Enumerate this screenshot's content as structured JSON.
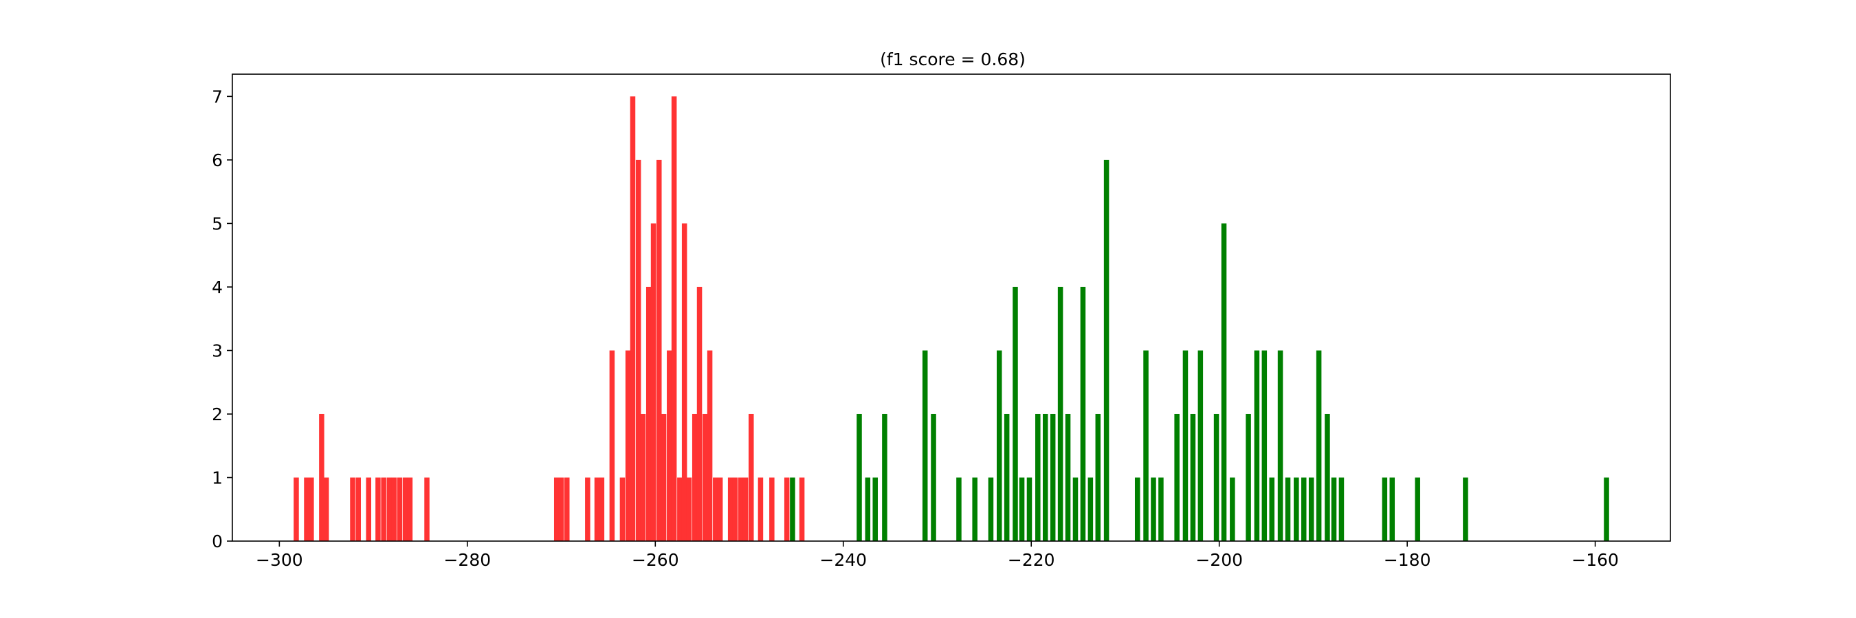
{
  "chart_data": {
    "type": "bar",
    "title": "(f1 score = 0.68)",
    "xlabel": "",
    "ylabel": "",
    "xlim": [
      -305,
      -152
    ],
    "ylim": [
      0,
      7.35
    ],
    "xticks": [
      -300,
      -280,
      -260,
      -240,
      -220,
      -200,
      -180,
      -160
    ],
    "yticks": [
      0,
      1,
      2,
      3,
      4,
      5,
      6,
      7
    ],
    "bar_width": 0.55,
    "grid": false,
    "legend": "none",
    "series": [
      {
        "color": "#ff3333",
        "x": [
          -298.2,
          -297.1,
          -296.6,
          -295.5,
          -295.0,
          -292.2,
          -291.6,
          -290.5,
          -289.5,
          -288.9,
          -288.3,
          -287.8,
          -287.2,
          -286.6,
          -286.1,
          -284.3,
          -270.5,
          -270.0,
          -269.4,
          -267.2,
          -266.2,
          -265.7,
          -264.6,
          -263.5,
          -262.9,
          -262.4,
          -261.8,
          -261.3,
          -260.7,
          -260.2,
          -259.6,
          -259.1,
          -258.5,
          -258.0,
          -257.4,
          -256.9,
          -256.4,
          -255.8,
          -255.3,
          -254.7,
          -254.2,
          -253.6,
          -253.1,
          -252.0,
          -251.5,
          -250.9,
          -250.4,
          -249.8,
          -248.8,
          -247.6,
          -246.0,
          -244.4
        ],
        "values": [
          1,
          1,
          1,
          2,
          1,
          1,
          1,
          1,
          1,
          1,
          1,
          1,
          1,
          1,
          1,
          1,
          1,
          1,
          1,
          1,
          1,
          1,
          3,
          1,
          3,
          7,
          6,
          2,
          4,
          5,
          6,
          2,
          3,
          7,
          1,
          5,
          1,
          2,
          4,
          2,
          3,
          1,
          1,
          1,
          1,
          1,
          1,
          2,
          1,
          1,
          1,
          1
        ]
      },
      {
        "color": "#008000",
        "x": [
          -245.4,
          -238.3,
          -237.4,
          -236.6,
          -235.6,
          -231.3,
          -230.4,
          -227.7,
          -226.0,
          -224.3,
          -223.4,
          -222.6,
          -221.7,
          -221.0,
          -220.2,
          -219.3,
          -218.5,
          -217.7,
          -216.9,
          -216.1,
          -215.3,
          -214.5,
          -213.7,
          -212.9,
          -212.0,
          -208.7,
          -207.8,
          -207.0,
          -206.2,
          -204.5,
          -203.6,
          -202.8,
          -202.0,
          -200.3,
          -199.5,
          -198.6,
          -196.9,
          -196.0,
          -195.2,
          -194.4,
          -193.5,
          -192.7,
          -191.8,
          -191.0,
          -190.2,
          -189.4,
          -188.5,
          -187.8,
          -187.0,
          -182.4,
          -181.6,
          -178.9,
          -173.8,
          -158.8
        ],
        "values": [
          1,
          2,
          1,
          1,
          2,
          3,
          2,
          1,
          1,
          1,
          3,
          2,
          4,
          1,
          1,
          2,
          2,
          2,
          4,
          2,
          1,
          4,
          1,
          2,
          6,
          1,
          3,
          1,
          1,
          2,
          3,
          2,
          3,
          2,
          5,
          1,
          2,
          3,
          3,
          1,
          3,
          1,
          1,
          1,
          1,
          3,
          2,
          1,
          1,
          1,
          1,
          1,
          1,
          1
        ]
      }
    ]
  }
}
